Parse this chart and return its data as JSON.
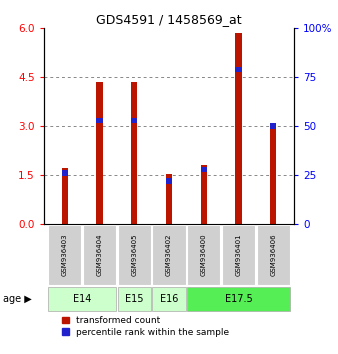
{
  "title": "GDS4591 / 1458569_at",
  "samples": [
    "GSM936403",
    "GSM936404",
    "GSM936405",
    "GSM936402",
    "GSM936400",
    "GSM936401",
    "GSM936406"
  ],
  "transformed_counts": [
    1.72,
    4.35,
    4.35,
    1.55,
    1.82,
    5.85,
    3.07
  ],
  "percentile_ranks": [
    26,
    53,
    53,
    22,
    28,
    79,
    50
  ],
  "left_ylim": [
    0,
    6
  ],
  "right_ylim": [
    0,
    100
  ],
  "left_yticks": [
    0,
    1.5,
    3,
    4.5,
    6
  ],
  "right_yticks": [
    0,
    25,
    50,
    75,
    100
  ],
  "age_data": [
    {
      "label": "E14",
      "indices": [
        0,
        1
      ],
      "color": "#ccffcc"
    },
    {
      "label": "E15",
      "indices": [
        2
      ],
      "color": "#ccffcc"
    },
    {
      "label": "E16",
      "indices": [
        3
      ],
      "color": "#ccffcc"
    },
    {
      "label": "E17.5",
      "indices": [
        4,
        5,
        6
      ],
      "color": "#55ee55"
    }
  ],
  "bar_color_red": "#bb1500",
  "bar_color_blue": "#2222cc",
  "bar_width": 0.18,
  "grid_color": "#888888",
  "bg_color": "#d0d0d0",
  "plot_bg": "#ffffff",
  "legend_red_label": "transformed count",
  "legend_blue_label": "percentile rank within the sample"
}
